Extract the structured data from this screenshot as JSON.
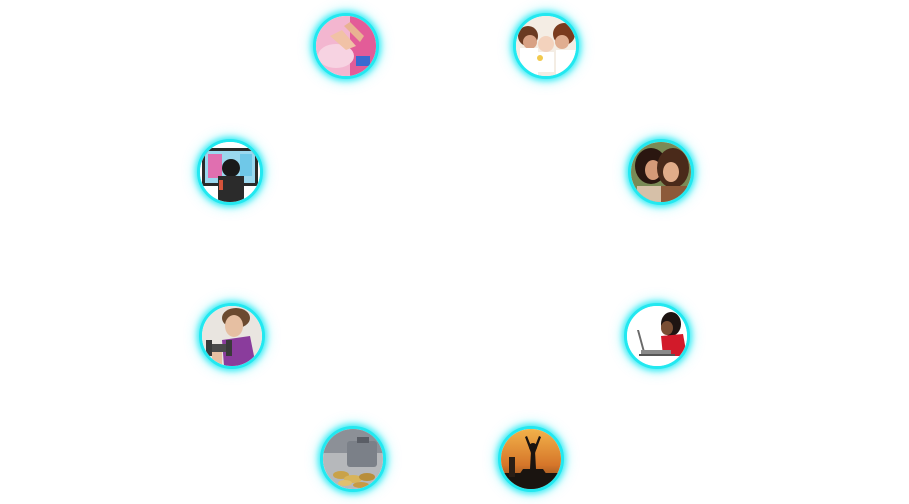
{
  "bubbles": [
    {
      "id": "hands",
      "icon": "hands-on-baby-photo-icon",
      "colors": {
        "bg": "#f3b6d0",
        "accent": "#e0508e"
      }
    },
    {
      "id": "family",
      "icon": "family-with-baby-photo-icon",
      "colors": {
        "bg": "#f4ede4",
        "accent": "#f2c94c"
      }
    },
    {
      "id": "tv",
      "icon": "person-watching-tv-photo-icon",
      "colors": {
        "bg": "#2a2a2a",
        "accent": "#7cd6f2"
      }
    },
    {
      "id": "friends",
      "icon": "two-women-smiling-photo-icon",
      "colors": {
        "bg": "#7a8a56",
        "accent": "#3a2016"
      }
    },
    {
      "id": "gym",
      "icon": "woman-lifting-dumbbell-photo-icon",
      "colors": {
        "bg": "#e9e5e0",
        "accent": "#8a3c9c"
      }
    },
    {
      "id": "laptop",
      "icon": "woman-using-laptop-photo-icon",
      "colors": {
        "bg": "#ffffff",
        "accent": "#d21a2a"
      }
    },
    {
      "id": "money",
      "icon": "piggy-bank-coins-photo-icon",
      "colors": {
        "bg": "#9aa0a8",
        "accent": "#c9a24a"
      }
    },
    {
      "id": "yoga",
      "icon": "yoga-silhouette-sunset-photo-icon",
      "colors": {
        "bg": "#d88a2c",
        "accent": "#1a1410"
      }
    }
  ],
  "ring_color": "#22e8f0"
}
